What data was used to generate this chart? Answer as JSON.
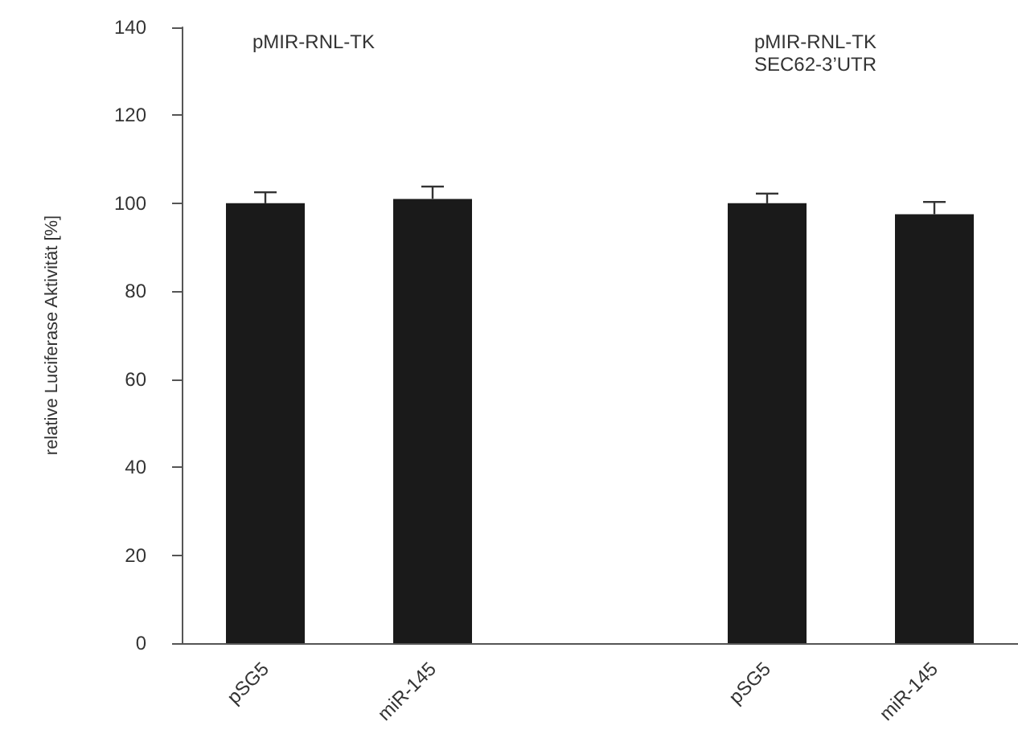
{
  "chart_data": {
    "type": "bar",
    "ylabel": "relative Luciferase Aktivität [%]",
    "categories": [
      "pSG5",
      "miR-145",
      null,
      "pSG5",
      "miR-145"
    ],
    "series": [
      {
        "color": "#1a1a1a",
        "values": [
          100,
          101,
          null,
          100,
          97.5
        ],
        "errors": [
          2.5,
          2.8,
          null,
          2.2,
          2.8
        ]
      }
    ],
    "ylim": [
      0,
      140
    ],
    "yticks": [
      0,
      20,
      40,
      60,
      80,
      100,
      120,
      140
    ],
    "grid": false,
    "annotations": [
      "pMIR-RNL-TK",
      "pMIR-RNL-TK\nSEC62-3’UTR"
    ]
  }
}
